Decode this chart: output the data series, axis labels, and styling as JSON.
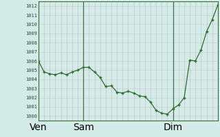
{
  "xlabel_ticks": [
    "Ven",
    "Sam",
    "Dim"
  ],
  "xlabel_tick_positions": [
    0,
    24,
    72
  ],
  "ylabel_min": 1000,
  "ylabel_max": 1012,
  "background_color": "#d4ece8",
  "grid_color_h": "#c8d8d4",
  "grid_color_v": "#c8bcc8",
  "line_color": "#2d6a2d",
  "marker_color": "#2d6a2d",
  "data_x": [
    0,
    3,
    6,
    9,
    12,
    15,
    18,
    21,
    24,
    27,
    30,
    33,
    36,
    39,
    42,
    45,
    48,
    51,
    54,
    57,
    60,
    63,
    66,
    69,
    72,
    75,
    78,
    81,
    84,
    87,
    90,
    93,
    96
  ],
  "data_y": [
    1006.0,
    1004.8,
    1004.6,
    1004.5,
    1004.7,
    1004.5,
    1004.8,
    1005.0,
    1005.3,
    1005.3,
    1004.8,
    1004.2,
    1003.2,
    1003.3,
    1002.6,
    1002.5,
    1002.7,
    1002.5,
    1002.2,
    1002.1,
    1001.5,
    1000.6,
    1000.3,
    1000.2,
    1000.8,
    1001.2,
    1002.0,
    1006.1,
    1006.0,
    1007.2,
    1009.2,
    1010.5,
    1012.1
  ],
  "vline_positions": [
    0,
    24,
    72
  ],
  "figsize": [
    3.2,
    2.0
  ],
  "dpi": 100
}
